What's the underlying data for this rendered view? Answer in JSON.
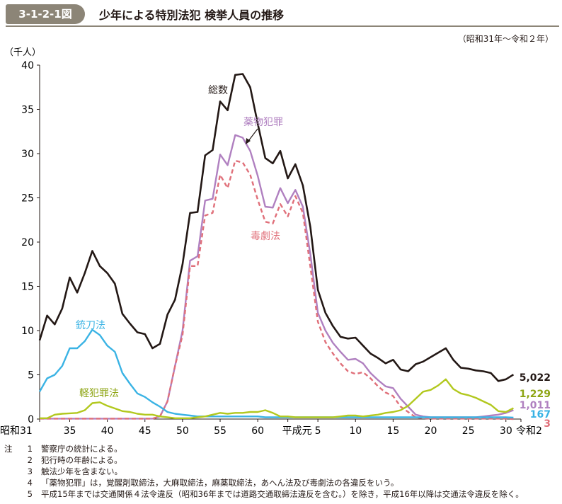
{
  "figure": {
    "number": "3-1-2-1図",
    "title": "少年による特別法犯 検挙人員の推移",
    "period": "（昭和31年～令和２年）"
  },
  "chart_data": {
    "type": "line",
    "y_unit": "（千人）",
    "ylim": [
      0,
      40
    ],
    "y_ticks": [
      0,
      5,
      10,
      15,
      20,
      25,
      30,
      35,
      40
    ],
    "x_range": [
      1956,
      2020
    ],
    "x_ticks": [
      {
        "x": 1956,
        "label": "昭和31"
      },
      {
        "x": 1960,
        "label": "35"
      },
      {
        "x": 1965,
        "label": "40"
      },
      {
        "x": 1970,
        "label": "45"
      },
      {
        "x": 1975,
        "label": "50"
      },
      {
        "x": 1980,
        "label": "55"
      },
      {
        "x": 1985,
        "label": "60"
      },
      {
        "x": 1989,
        "label": "平成元"
      },
      {
        "x": 1993,
        "label": "5"
      },
      {
        "x": 1998,
        "label": "10"
      },
      {
        "x": 2003,
        "label": "15"
      },
      {
        "x": 2008,
        "label": "20"
      },
      {
        "x": 2013,
        "label": "25"
      },
      {
        "x": 2018,
        "label": "30"
      },
      {
        "x": 2020,
        "label": "令和2"
      }
    ],
    "grid": false,
    "series": [
      {
        "name": "総数",
        "color": "#231815",
        "dash": false,
        "end_label": "5,022",
        "values": [
          8.9,
          11.7,
          10.7,
          12.5,
          16.0,
          14.3,
          16.5,
          19.0,
          17.3,
          16.5,
          15.3,
          11.9,
          10.8,
          9.8,
          9.6,
          8.0,
          8.5,
          11.8,
          13.5,
          17.5,
          23.3,
          23.4,
          29.8,
          30.4,
          35.9,
          34.9,
          38.9,
          39.0,
          37.5,
          33.4,
          29.5,
          28.9,
          30.3,
          27.2,
          28.8,
          26.4,
          21.7,
          14.6,
          12.0,
          10.5,
          9.3,
          9.1,
          9.2,
          8.3,
          7.4,
          6.9,
          6.3,
          6.7,
          5.6,
          5.4,
          6.2,
          6.5,
          7.0,
          7.5,
          8.0,
          6.7,
          5.8,
          5.7,
          5.5,
          5.4,
          5.2,
          4.3,
          4.5,
          5.022
        ]
      },
      {
        "name": "薬物犯罪",
        "color": "#b080c0",
        "dash": false,
        "end_label": "1,011",
        "values": [
          0.05,
          0.05,
          0.05,
          0.05,
          0.05,
          0.05,
          0.05,
          0.05,
          0.05,
          0.05,
          0.05,
          0.05,
          0.05,
          0.05,
          0.05,
          0.05,
          0.3,
          2.0,
          6.0,
          10.0,
          17.9,
          18.4,
          24.7,
          24.9,
          29.9,
          28.7,
          32.1,
          31.8,
          30.3,
          27.5,
          24.0,
          23.9,
          26.1,
          24.4,
          25.9,
          24.0,
          18.6,
          12.0,
          10.0,
          8.6,
          7.6,
          6.7,
          6.8,
          6.3,
          5.2,
          4.4,
          3.7,
          3.5,
          2.3,
          1.4,
          0.5,
          0.3,
          0.2,
          0.2,
          0.2,
          0.2,
          0.2,
          0.2,
          0.2,
          0.3,
          0.4,
          0.5,
          0.7,
          1.011
        ]
      },
      {
        "name": "毒劇法",
        "color": "#e0707a",
        "dash": true,
        "end_label": "3",
        "values": [
          0.05,
          0.05,
          0.05,
          0.05,
          0.05,
          0.05,
          0.05,
          0.05,
          0.05,
          0.05,
          0.05,
          0.05,
          0.05,
          0.05,
          0.05,
          0.05,
          0.3,
          2.0,
          6.0,
          9.5,
          17.3,
          17.3,
          23.0,
          23.3,
          27.6,
          26.1,
          29.2,
          29.0,
          27.6,
          24.8,
          22.3,
          22.1,
          24.3,
          22.9,
          25.2,
          23.3,
          17.2,
          11.0,
          8.7,
          7.4,
          6.3,
          5.4,
          5.1,
          5.3,
          4.6,
          3.7,
          3.0,
          2.6,
          1.4,
          0.8,
          0.2,
          0.1,
          0.05,
          0.05,
          0.05,
          0.05,
          0.05,
          0.05,
          0.05,
          0.05,
          0.05,
          0.05,
          0.05,
          0.003
        ]
      },
      {
        "name": "銃刀法",
        "color": "#3ab3e4",
        "dash": false,
        "end_label": "167",
        "values": [
          3.1,
          4.6,
          5.0,
          6.0,
          8.0,
          8.0,
          8.8,
          10.1,
          9.5,
          8.3,
          7.6,
          5.2,
          4.0,
          2.9,
          2.5,
          1.9,
          1.4,
          0.8,
          0.6,
          0.5,
          0.4,
          0.3,
          0.3,
          0.3,
          0.3,
          0.3,
          0.3,
          0.3,
          0.3,
          0.3,
          0.2,
          0.2,
          0.2,
          0.2,
          0.2,
          0.2,
          0.2,
          0.2,
          0.2,
          0.2,
          0.2,
          0.2,
          0.2,
          0.2,
          0.2,
          0.2,
          0.2,
          0.2,
          0.2,
          0.2,
          0.2,
          0.2,
          0.2,
          0.2,
          0.2,
          0.2,
          0.2,
          0.2,
          0.2,
          0.2,
          0.2,
          0.2,
          0.2,
          0.167
        ]
      },
      {
        "name": "軽犯罪法",
        "color": "#b2c81e",
        "dash": false,
        "end_label": "1,229",
        "values": [
          0.1,
          0.1,
          0.5,
          0.6,
          0.65,
          0.7,
          1.0,
          1.8,
          1.9,
          1.5,
          1.2,
          0.9,
          0.8,
          0.6,
          0.5,
          0.5,
          0.3,
          0.2,
          0.1,
          0.1,
          0.1,
          0.2,
          0.3,
          0.5,
          0.7,
          0.6,
          0.7,
          0.7,
          0.8,
          0.8,
          1.0,
          0.7,
          0.3,
          0.3,
          0.2,
          0.2,
          0.2,
          0.2,
          0.2,
          0.2,
          0.3,
          0.4,
          0.4,
          0.3,
          0.4,
          0.5,
          0.7,
          0.8,
          1.0,
          1.5,
          2.3,
          3.1,
          3.3,
          3.8,
          4.5,
          3.4,
          2.9,
          2.7,
          2.4,
          2.0,
          1.6,
          0.9,
          0.8,
          1.229
        ]
      }
    ],
    "annotations": [
      {
        "text": "総数",
        "series": 0
      },
      {
        "text": "薬物犯罪",
        "series": 1
      },
      {
        "text": "毒劇法",
        "series": 2
      },
      {
        "text": "銃刀法",
        "series": 3
      },
      {
        "text": "軽犯罪法",
        "series": 4
      }
    ]
  },
  "notes": [
    {
      "mark": "注",
      "num": "1",
      "text": "警察庁の統計による。"
    },
    {
      "mark": "",
      "num": "2",
      "text": "犯行時の年齢による。"
    },
    {
      "mark": "",
      "num": "3",
      "text": "触法少年を含まない。"
    },
    {
      "mark": "",
      "num": "4",
      "text": "「薬物犯罪」は，覚醒剤取締法，大麻取締法，麻薬取締法，あへん法及び毒劇法の各違反をいう。"
    },
    {
      "mark": "",
      "num": "5",
      "text": "平成15年までは交通関係４法令違反（昭和36年までは道路交通取締法違反を含む。）を除き，平成16年以降は交通法令違反を除く。"
    }
  ]
}
